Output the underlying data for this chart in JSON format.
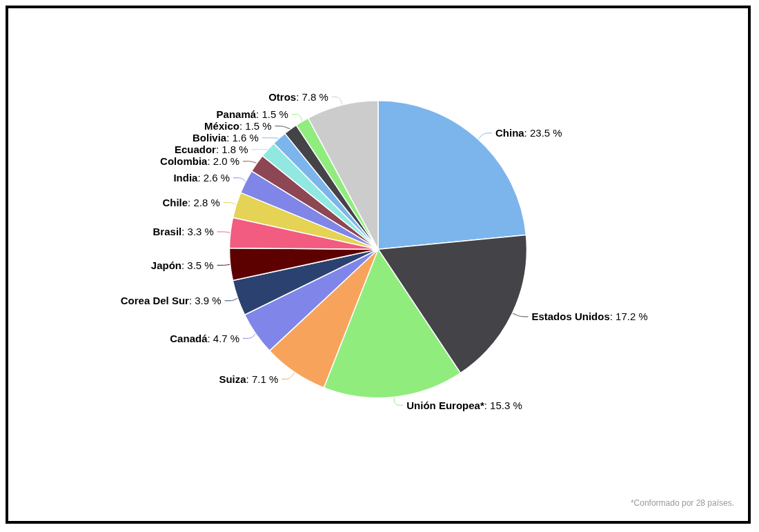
{
  "chart_data": {
    "type": "pie",
    "categories": [
      "China",
      "Estados Unidos",
      "Unión Europea*",
      "Suiza",
      "Canadá",
      "Corea Del Sur",
      "Japón",
      "Brasil",
      "Chile",
      "India",
      "Colombia",
      "Ecuador",
      "Bolivia",
      "México",
      "Panamá",
      "Otros"
    ],
    "values": [
      23.5,
      17.2,
      15.3,
      7.1,
      4.7,
      3.9,
      3.5,
      3.3,
      2.8,
      2.6,
      2.0,
      1.8,
      1.6,
      1.5,
      1.5,
      7.8
    ],
    "value_labels": [
      ": 23.5 %",
      ": 17.2 %",
      ": 15.3 %",
      ": 7.1 %",
      ": 4.7 %",
      ": 3.9 %",
      ": 3.5 %",
      ": 3.3 %",
      ": 2.8 %",
      ": 2.6 %",
      ": 2.0 %",
      ": 1.8 %",
      ": 1.6 %",
      ": 1.5 %",
      ": 1.5 %",
      ": 7.8 %"
    ],
    "colors": [
      "#7cb5ec",
      "#434348",
      "#90ed7d",
      "#f7a35c",
      "#8085e9",
      "#2b4270",
      "#5c0000",
      "#f15c80",
      "#e4d354",
      "#8085e8",
      "#8d4653",
      "#91e8e1",
      "#7cb5ec",
      "#434348",
      "#90ed7d",
      "#cccccc"
    ],
    "legend": false,
    "annotations": [
      "*Conformado por 28 países."
    ]
  }
}
